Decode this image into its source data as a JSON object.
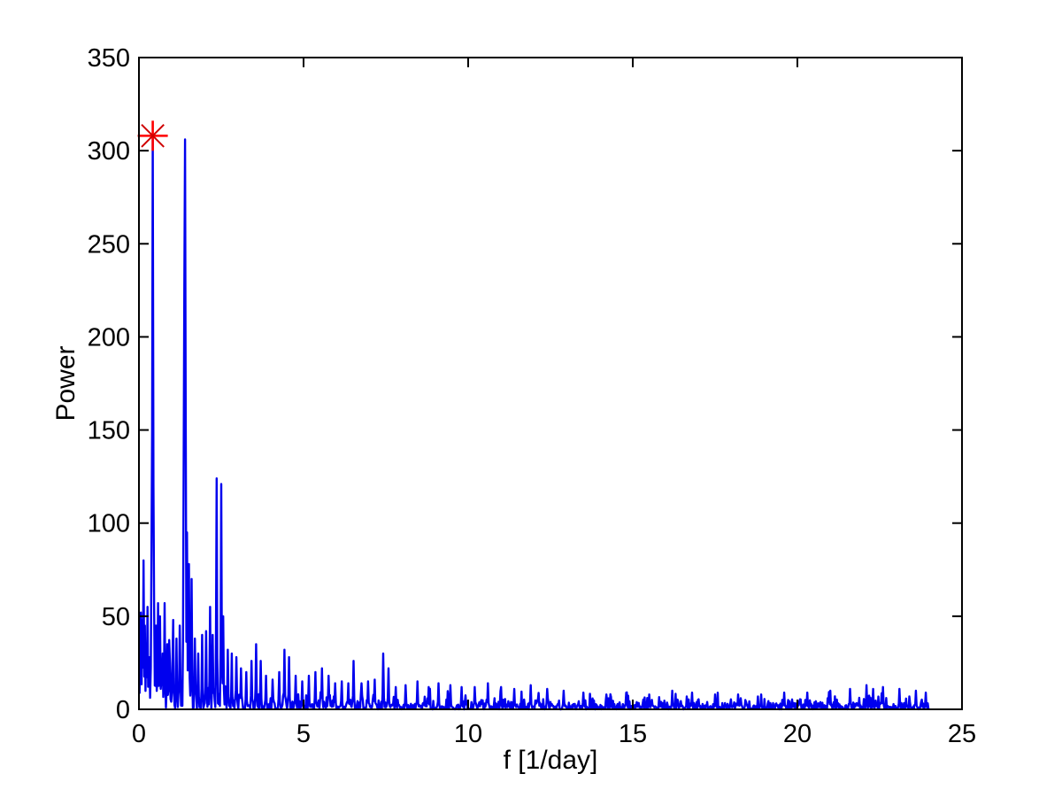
{
  "figure": {
    "background": "#ffffff",
    "title": ""
  },
  "chart_data": {
    "type": "line",
    "title": "",
    "xlabel": "f [1/day]",
    "ylabel": "Power",
    "xlim": [
      0,
      25
    ],
    "ylim": [
      0,
      350
    ],
    "xticks": [
      0,
      5,
      10,
      15,
      20,
      25
    ],
    "yticks": [
      0,
      50,
      100,
      150,
      200,
      250,
      300,
      350
    ],
    "grid": false,
    "legend": null,
    "line_color": "#0000ee",
    "axis_color": "#000000",
    "marker": {
      "shape": "asterisk",
      "f": 0.42,
      "power": 308,
      "color": "#ff0000",
      "color_diagonal": "#cf0000",
      "radius_px": 17
    },
    "series_name": "lomb-scargle-power-spectrum",
    "f_start": 0.02,
    "f_end": 24.0,
    "f_step": 0.02,
    "noise": {
      "seed": 20,
      "floor": 2.4,
      "amp": 12,
      "decay": 1.6,
      "scale": 0.75,
      "cap_mult": 4.5
    },
    "peaks": [
      [
        0.04,
        30
      ],
      [
        0.06,
        52
      ],
      [
        0.1,
        48
      ],
      [
        0.14,
        80
      ],
      [
        0.18,
        45
      ],
      [
        0.22,
        35
      ],
      [
        0.26,
        55
      ],
      [
        0.32,
        28
      ],
      [
        0.38,
        80
      ],
      [
        0.4,
        150
      ],
      [
        0.42,
        308
      ],
      [
        0.44,
        120
      ],
      [
        0.46,
        58
      ],
      [
        0.52,
        45
      ],
      [
        0.58,
        57
      ],
      [
        0.64,
        50
      ],
      [
        0.72,
        30
      ],
      [
        0.78,
        57
      ],
      [
        0.86,
        35
      ],
      [
        0.94,
        25
      ],
      [
        1.04,
        48
      ],
      [
        1.14,
        38
      ],
      [
        1.24,
        45
      ],
      [
        1.36,
        140
      ],
      [
        1.38,
        228
      ],
      [
        1.4,
        306
      ],
      [
        1.42,
        165
      ],
      [
        1.46,
        95
      ],
      [
        1.52,
        78
      ],
      [
        1.6,
        70
      ],
      [
        1.7,
        38
      ],
      [
        1.8,
        30
      ],
      [
        1.92,
        40
      ],
      [
        2.04,
        42
      ],
      [
        2.16,
        55
      ],
      [
        2.24,
        40
      ],
      [
        2.35,
        124
      ],
      [
        2.5,
        121
      ],
      [
        2.56,
        50
      ],
      [
        2.7,
        32
      ],
      [
        2.82,
        30
      ],
      [
        2.95,
        28
      ],
      [
        3.1,
        22
      ],
      [
        3.25,
        20
      ],
      [
        3.42,
        26
      ],
      [
        3.55,
        35
      ],
      [
        3.7,
        26
      ],
      [
        3.85,
        18
      ],
      [
        4.05,
        16
      ],
      [
        4.25,
        20
      ],
      [
        4.42,
        32
      ],
      [
        4.56,
        28
      ],
      [
        4.75,
        18
      ],
      [
        4.95,
        15
      ],
      [
        5.15,
        18
      ],
      [
        5.35,
        20
      ],
      [
        5.55,
        22
      ],
      [
        5.75,
        18
      ],
      [
        5.95,
        14
      ],
      [
        6.15,
        15
      ],
      [
        6.35,
        14
      ],
      [
        6.52,
        26
      ],
      [
        6.75,
        14
      ],
      [
        6.95,
        15
      ],
      [
        7.15,
        16
      ],
      [
        7.42,
        30
      ],
      [
        7.58,
        22
      ],
      [
        7.8,
        12
      ],
      [
        8.1,
        13
      ],
      [
        8.45,
        15
      ],
      [
        8.8,
        12
      ],
      [
        9.1,
        14
      ],
      [
        9.45,
        13
      ],
      [
        9.8,
        12
      ],
      [
        10.2,
        12
      ],
      [
        10.6,
        14
      ],
      [
        11.0,
        12
      ],
      [
        11.4,
        11
      ],
      [
        11.9,
        13
      ],
      [
        12.4,
        11
      ],
      [
        12.9,
        10
      ],
      [
        13.5,
        9
      ],
      [
        14.2,
        8
      ],
      [
        14.8,
        9
      ],
      [
        15.5,
        8
      ],
      [
        16.2,
        10
      ],
      [
        16.8,
        9
      ],
      [
        17.5,
        8
      ],
      [
        18.2,
        8
      ],
      [
        18.9,
        8
      ],
      [
        19.6,
        9
      ],
      [
        20.3,
        9
      ],
      [
        21.0,
        10
      ],
      [
        21.6,
        11
      ],
      [
        22.1,
        13
      ],
      [
        22.3,
        11
      ],
      [
        22.6,
        12
      ],
      [
        23.1,
        11
      ],
      [
        23.6,
        10
      ],
      [
        23.9,
        9
      ]
    ]
  }
}
